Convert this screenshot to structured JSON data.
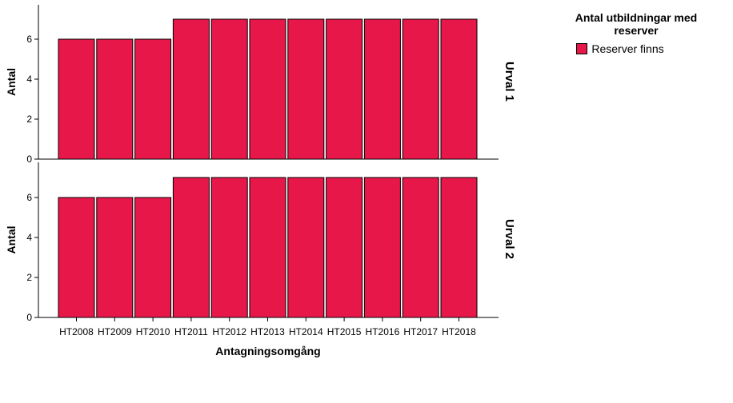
{
  "chart_data": {
    "type": "bar",
    "categories": [
      "HT2008",
      "HT2009",
      "HT2010",
      "HT2011",
      "HT2012",
      "HT2013",
      "HT2014",
      "HT2015",
      "HT2016",
      "HT2017",
      "HT2018"
    ],
    "panels": [
      {
        "label": "Urval 1",
        "values": [
          6,
          6,
          6,
          7,
          7,
          7,
          7,
          7,
          7,
          7,
          7
        ]
      },
      {
        "label": "Urval 2",
        "values": [
          6,
          6,
          6,
          7,
          7,
          7,
          7,
          7,
          7,
          7,
          7
        ]
      }
    ],
    "series": [
      {
        "name": "Reserver finns",
        "color": "#e8174a"
      }
    ],
    "xlabel": "Antagningsomgång",
    "ylabel": "Antal",
    "ylim": [
      0,
      7.8
    ],
    "yticks": [
      0,
      2,
      4,
      6
    ],
    "legend": {
      "title": "Antal utbildningar med reserver",
      "placement": "top-right"
    },
    "grid": false
  }
}
